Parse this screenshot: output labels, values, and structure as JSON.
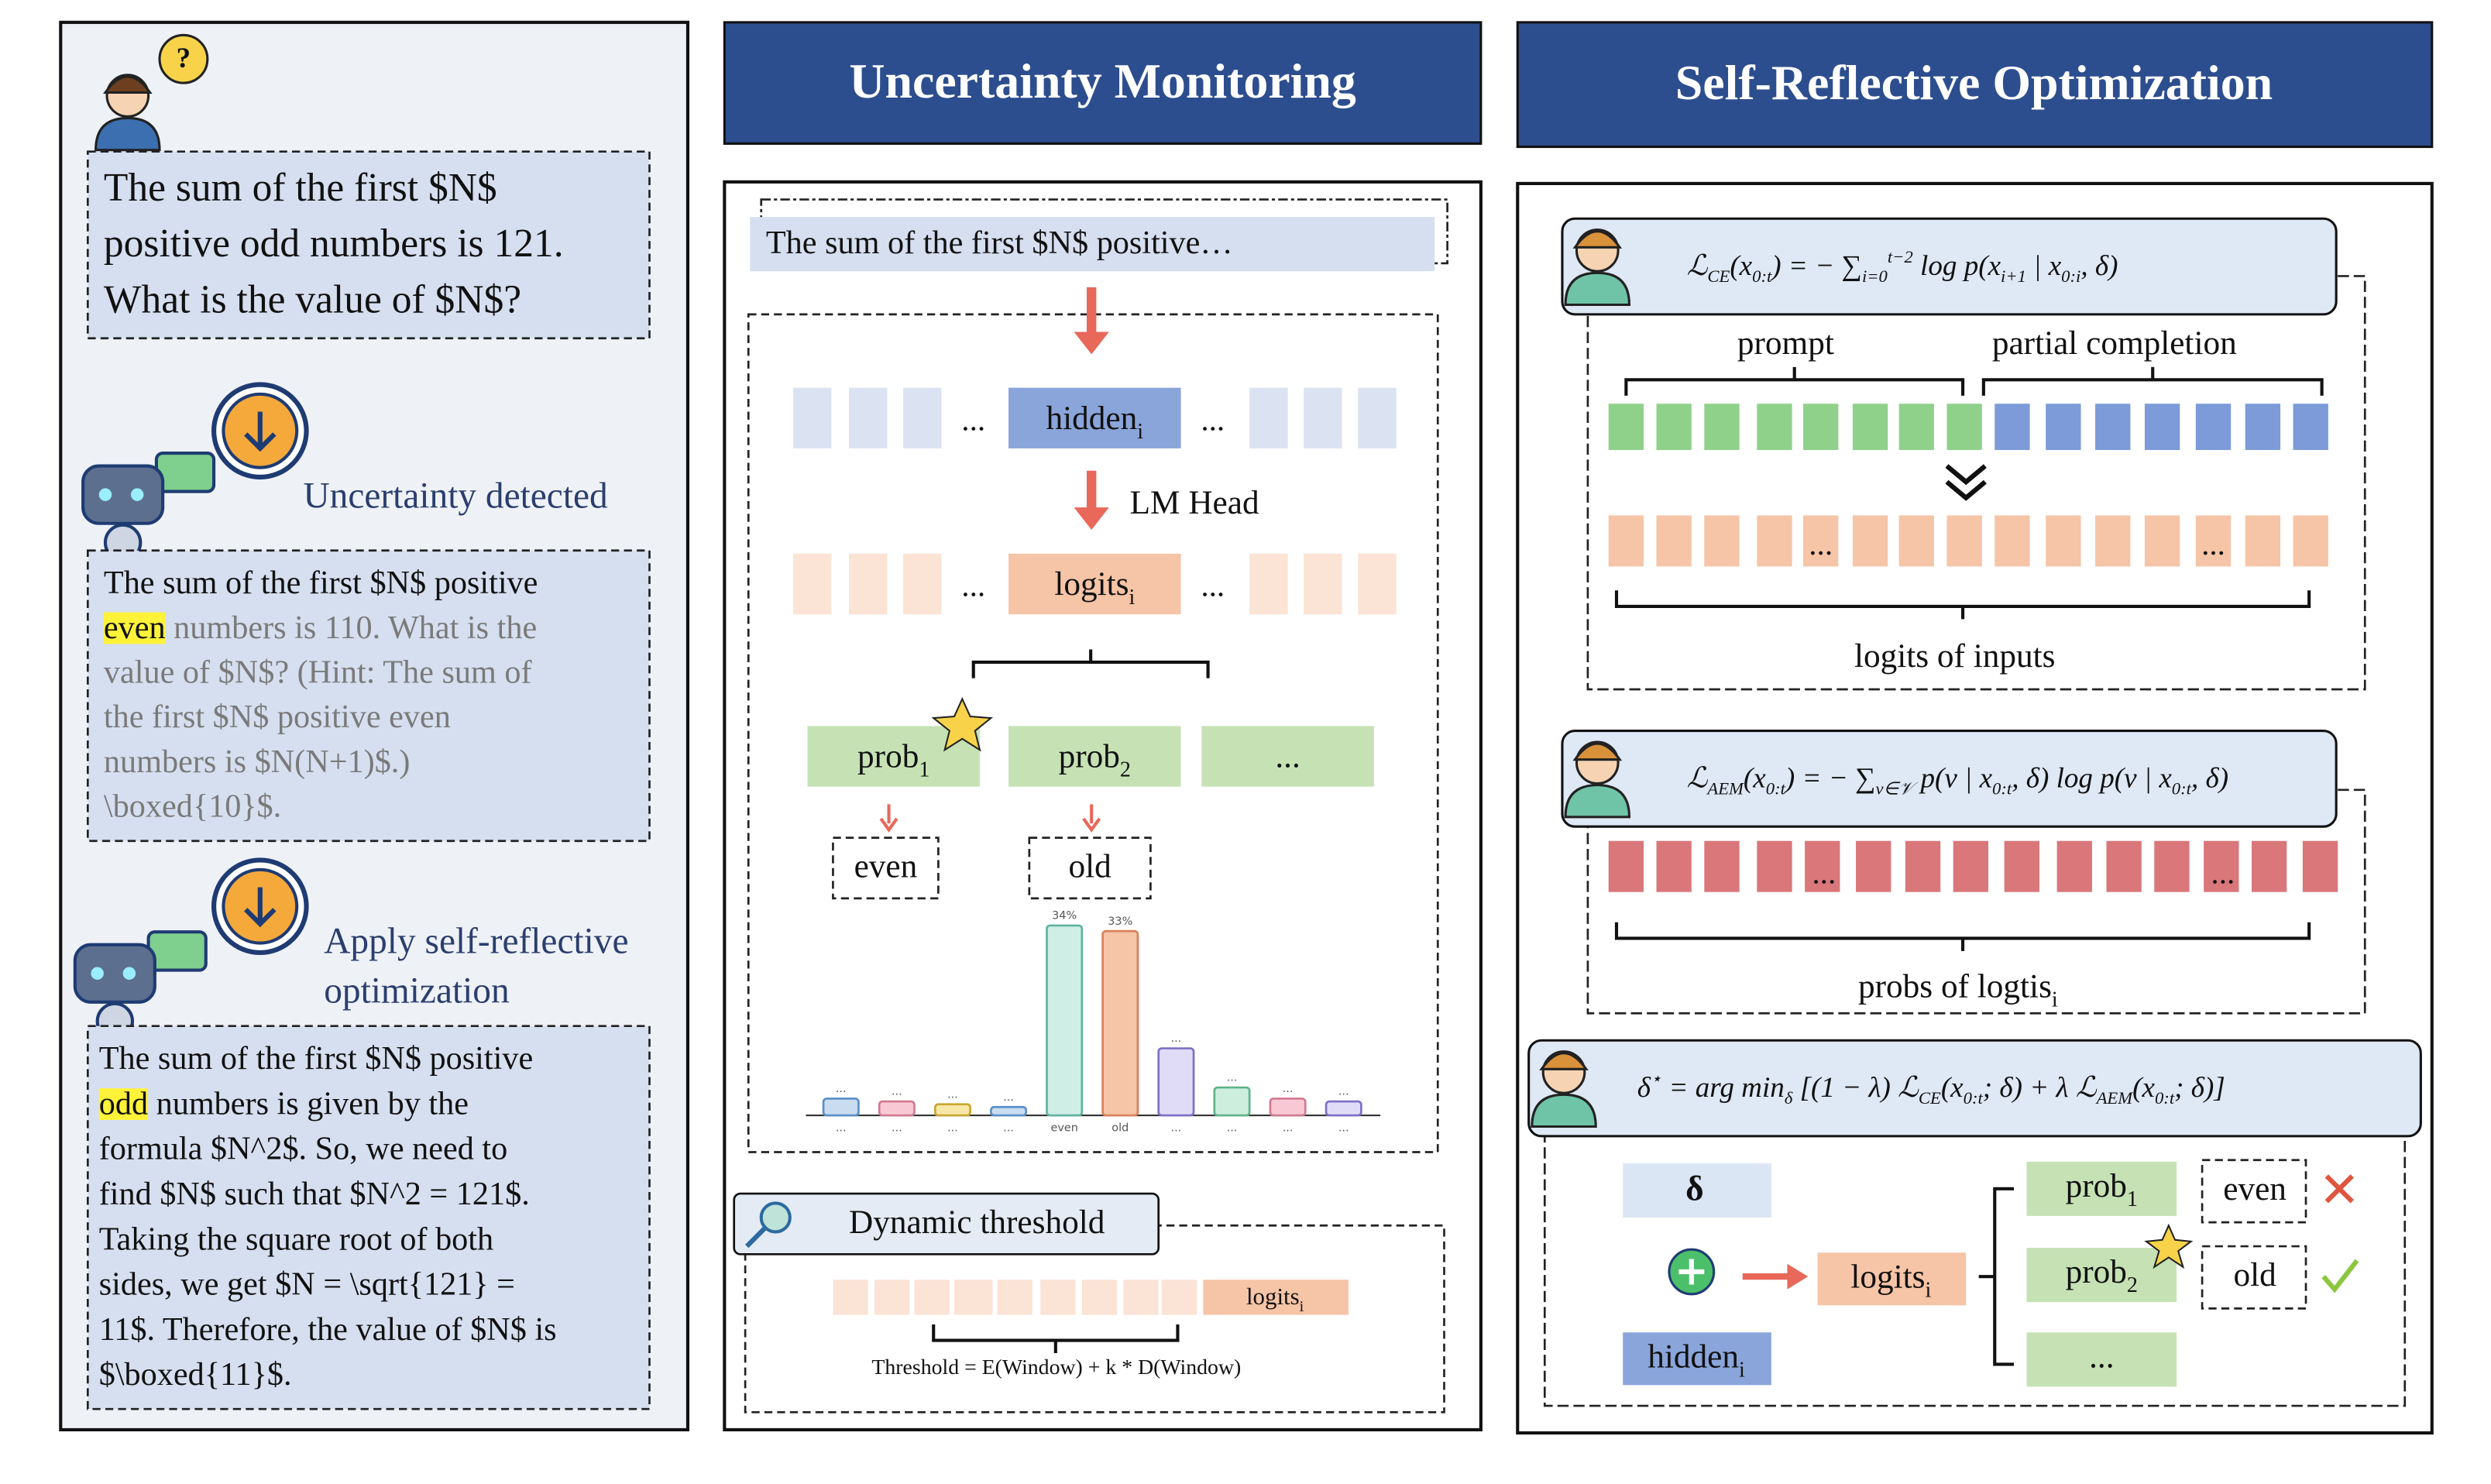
{
  "left_panel": {
    "question_icon": "?",
    "question": [
      "The sum of the first $N$",
      "positive odd numbers is 121.",
      "What is the value of $N$?"
    ],
    "status1": "Uncertainty detected",
    "reply1": [
      [
        {
          "text": "The sum of the first $N$ positive",
          "style": "plain"
        }
      ],
      [
        {
          "text": "even",
          "style": "highlight"
        },
        {
          "text": " numbers is 110. What is the",
          "style": "gray"
        }
      ],
      [
        {
          "text": "value of $N$? (Hint: The sum of",
          "style": "gray"
        }
      ],
      [
        {
          "text": "the first $N$ positive even",
          "style": "gray"
        }
      ],
      [
        {
          "text": "numbers is $N(N+1)$.)",
          "style": "gray"
        }
      ],
      [
        {
          "text": "\\boxed{10}$.",
          "style": "gray"
        }
      ]
    ],
    "status2": [
      "Apply self-reflective",
      "optimization"
    ],
    "reply2": [
      [
        {
          "text": "The sum of the first $N$ positive",
          "style": "plain"
        }
      ],
      [
        {
          "text": "odd",
          "style": "highlight"
        },
        {
          "text": " numbers is given by the",
          "style": "plain"
        }
      ],
      [
        {
          "text": "formula $N^2$. So, we need to",
          "style": "plain"
        }
      ],
      [
        {
          "text": "find $N$ such that $N^2 = 121$.",
          "style": "plain"
        }
      ],
      [
        {
          "text": "Taking the square root of both",
          "style": "plain"
        }
      ],
      [
        {
          "text": "sides, we get $N = \\sqrt{121} =",
          "style": "plain"
        }
      ],
      [
        {
          "text": "11$. Therefore, the value of $N$ is",
          "style": "plain"
        }
      ],
      [
        {
          "text": "$\\boxed{11}$.",
          "style": "plain"
        }
      ]
    ]
  },
  "middle_panel": {
    "title": "Uncertainty Monitoring",
    "prompt": "The sum of the first $N$ positive…",
    "ellipsis": "...",
    "hidden": {
      "text": "hidden",
      "sub": "i"
    },
    "lm_head": "LM Head",
    "logits": {
      "text": "logits",
      "sub": "i"
    },
    "probs": [
      {
        "text": "prob",
        "sub": "1"
      },
      {
        "text": "prob",
        "sub": "2"
      },
      {
        "text": "..."
      }
    ],
    "tokens": [
      "even",
      "old"
    ],
    "bars": [
      {
        "value": 3,
        "top": "...",
        "bottom": "..."
      },
      {
        "value": 2.5,
        "top": "...",
        "bottom": "..."
      },
      {
        "value": 2,
        "top": "...",
        "bottom": "..."
      },
      {
        "value": 1.5,
        "top": "...",
        "bottom": "..."
      },
      {
        "value": 34,
        "top": "34%",
        "bottom": "even"
      },
      {
        "value": 33,
        "top": "33%",
        "bottom": "old"
      },
      {
        "value": 12,
        "top": "...",
        "bottom": "..."
      },
      {
        "value": 5,
        "top": "...",
        "bottom": "..."
      },
      {
        "value": 3,
        "top": "...",
        "bottom": "..."
      },
      {
        "value": 2.5,
        "top": "...",
        "bottom": "..."
      }
    ],
    "threshold_title": "Dynamic threshold",
    "threshold_formula": "Threshold = E(Window) + k * D(Window)"
  },
  "right_panel": {
    "title": "Self-Reflective Optimization",
    "formulas": [
      [
        {
          "text": "ℒ"
        },
        {
          "text": "CE",
          "pos": "sub"
        },
        {
          "text": "(x"
        },
        {
          "text": "0:t",
          "pos": "sub"
        },
        {
          "text": ")  =  − ∑"
        },
        {
          "text": "i=0",
          "pos": "sub"
        },
        {
          "text": "t−2",
          "pos": "super"
        },
        {
          "text": " log p(x"
        },
        {
          "text": "i+1",
          "pos": "sub"
        },
        {
          "text": " | x"
        },
        {
          "text": "0:i",
          "pos": "sub"
        },
        {
          "text": ", δ)"
        }
      ],
      [
        {
          "text": "ℒ"
        },
        {
          "text": "AEM",
          "pos": "sub"
        },
        {
          "text": "(x"
        },
        {
          "text": "0:t",
          "pos": "sub"
        },
        {
          "text": ")  =  − ∑"
        },
        {
          "text": "v∈𝒱",
          "pos": "sub"
        },
        {
          "text": " p(v | x"
        },
        {
          "text": "0:t",
          "pos": "sub"
        },
        {
          "text": ", δ)  log p(v | x"
        },
        {
          "text": "0:t",
          "pos": "sub"
        },
        {
          "text": ", δ)"
        }
      ],
      [
        {
          "text": "δ"
        },
        {
          "text": "⋆",
          "pos": "super"
        },
        {
          "text": " = arg min"
        },
        {
          "text": "δ",
          "pos": "sub"
        },
        {
          "text": "  [(1 − λ) ℒ"
        },
        {
          "text": "CE",
          "pos": "sub"
        },
        {
          "text": "(x"
        },
        {
          "text": "0:t",
          "pos": "sub"
        },
        {
          "text": "; δ) + λ ℒ"
        },
        {
          "text": "AEM",
          "pos": "sub"
        },
        {
          "text": "(x"
        },
        {
          "text": "0:t",
          "pos": "sub"
        },
        {
          "text": "; δ)]"
        }
      ]
    ],
    "prompt_label": "prompt",
    "completion_label": "partial completion",
    "ellipsis": "...",
    "logits_inputs": "logits of inputs",
    "probs_logits": {
      "text": "probs of logtis",
      "sub": "i"
    },
    "delta": "δ",
    "logits": {
      "text": "logits",
      "sub": "i"
    },
    "hidden": {
      "text": "hidden",
      "sub": "i"
    },
    "probs": [
      {
        "text": "prob",
        "sub": "1"
      },
      {
        "text": "prob",
        "sub": "2"
      },
      {
        "text": "..."
      }
    ],
    "tokens": [
      "even",
      "old"
    ]
  }
}
